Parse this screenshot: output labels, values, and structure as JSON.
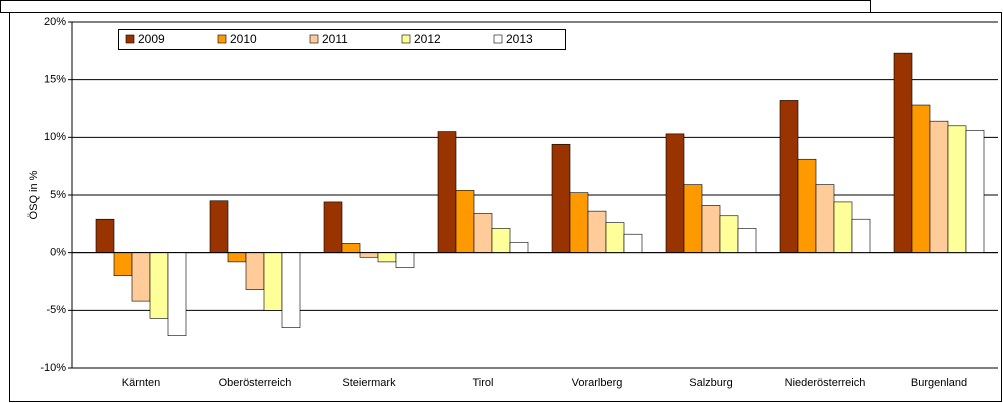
{
  "chart_data": {
    "type": "bar",
    "ylabel": "ÖSQ in %",
    "categories": [
      "Kärnten",
      "Oberösterreich",
      "Steiermark",
      "Tirol",
      "Vorarlberg",
      "Salzburg",
      "Niederösterreich",
      "Burgenland"
    ],
    "series": [
      {
        "name": "2009",
        "color": "#993300",
        "values": [
          2.9,
          4.5,
          4.4,
          10.5,
          9.4,
          10.3,
          13.2,
          17.3
        ]
      },
      {
        "name": "2010",
        "color": "#ff9900",
        "values": [
          -2.0,
          -0.8,
          0.8,
          5.4,
          5.2,
          5.9,
          8.1,
          12.8
        ]
      },
      {
        "name": "2011",
        "color": "#ffcc99",
        "values": [
          -4.2,
          -3.2,
          -0.4,
          3.4,
          3.6,
          4.1,
          5.9,
          11.4
        ]
      },
      {
        "name": "2012",
        "color": "#ffff99",
        "values": [
          -5.7,
          -5.0,
          -0.8,
          2.1,
          2.6,
          3.2,
          4.4,
          11.0
        ]
      },
      {
        "name": "2013",
        "color": "#ffffff",
        "values": [
          -7.2,
          -6.5,
          -1.3,
          0.9,
          1.6,
          2.1,
          2.9,
          10.6
        ]
      }
    ],
    "ylim": [
      -10,
      20
    ],
    "yticks": [
      {
        "value": -10,
        "label": "-10%"
      },
      {
        "value": -5,
        "label": "-5%"
      },
      {
        "value": 0,
        "label": "0%"
      },
      {
        "value": 5,
        "label": "5%"
      },
      {
        "value": 10,
        "label": "10%"
      },
      {
        "value": 15,
        "label": "15%"
      },
      {
        "value": 20,
        "label": "20%"
      }
    ],
    "grid": true,
    "legend": "top-left"
  }
}
